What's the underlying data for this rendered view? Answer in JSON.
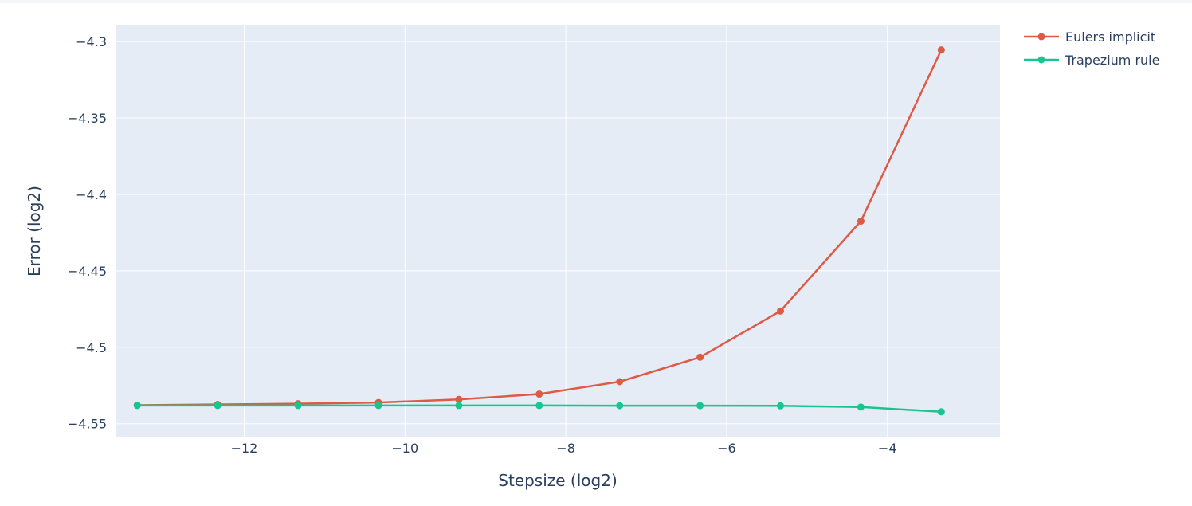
{
  "chart_data": {
    "type": "line",
    "title": "",
    "xlabel": "Stepsize (log2)",
    "ylabel": "Error (log2)",
    "xlim": [
      -13.6,
      -2.6
    ],
    "ylim": [
      -4.559,
      -4.289
    ],
    "xticks": [
      -12,
      -10,
      -8,
      -6,
      -4
    ],
    "xtick_labels": [
      "−12",
      "−10",
      "−8",
      "−6",
      "−4"
    ],
    "yticks": [
      -4.3,
      -4.35,
      -4.4,
      -4.45,
      -4.5,
      -4.55
    ],
    "ytick_labels": [
      "−4.3",
      "−4.35",
      "−4.4",
      "−4.45",
      "−4.5",
      "−4.55"
    ],
    "grid": true,
    "legend_position": "top-right, outside plot",
    "background_color": "#e5ecf6",
    "x": [
      -13.33,
      -12.33,
      -11.33,
      -10.33,
      -9.33,
      -8.33,
      -7.33,
      -6.33,
      -5.33,
      -4.33,
      -3.33
    ],
    "series": [
      {
        "name": "Eulers implicit",
        "color": "#dd5a45",
        "values": [
          -4.5379,
          -4.5374,
          -4.5369,
          -4.5361,
          -4.5341,
          -4.5306,
          -4.5225,
          -4.5065,
          -4.4763,
          -4.4175,
          -4.3055
        ]
      },
      {
        "name": "Trapezium rule",
        "color": "#19c58f",
        "values": [
          -4.5381,
          -4.5381,
          -4.5381,
          -4.5381,
          -4.5381,
          -4.5381,
          -4.5382,
          -4.5382,
          -4.5383,
          -4.5391,
          -4.5422
        ]
      }
    ]
  }
}
